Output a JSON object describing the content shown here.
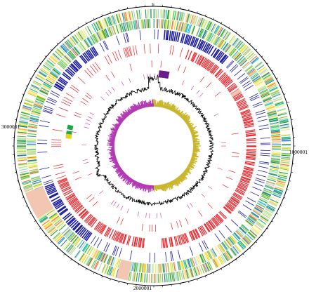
{
  "diagram": {
    "type": "circular-genome-map",
    "position_labels": {
      "top": "1",
      "right": "1000001",
      "bottom": "2000001",
      "left": "3000001"
    },
    "colors": {
      "outline": "#000000",
      "cog_palette": [
        "#1a9850",
        "#66bd63",
        "#a6d96a",
        "#d9ef8b",
        "#fee08b",
        "#fdae61",
        "#3399cc",
        "#00bfbf",
        "#7fbf3f",
        "#ffd700",
        "#b2df8a",
        "#33a02c",
        "#1f78b4",
        "#a6cee3",
        "#e6f598",
        "#f46d43",
        "#ffffbf",
        "#abdda4"
      ],
      "gene_blue": "#1c1c9e",
      "rna_red": "#e8242a",
      "pink_marks": "#d0309a",
      "gc_content": "#000000",
      "gc_skew_positive": "#c9b62a",
      "gc_skew_negative": "#b23ab3",
      "purple_region": "#6a1b8a",
      "salmon_region": "#f2c6b0",
      "green_blocks": "#1aa64a",
      "yellow_block": "#e9d11a"
    }
  }
}
